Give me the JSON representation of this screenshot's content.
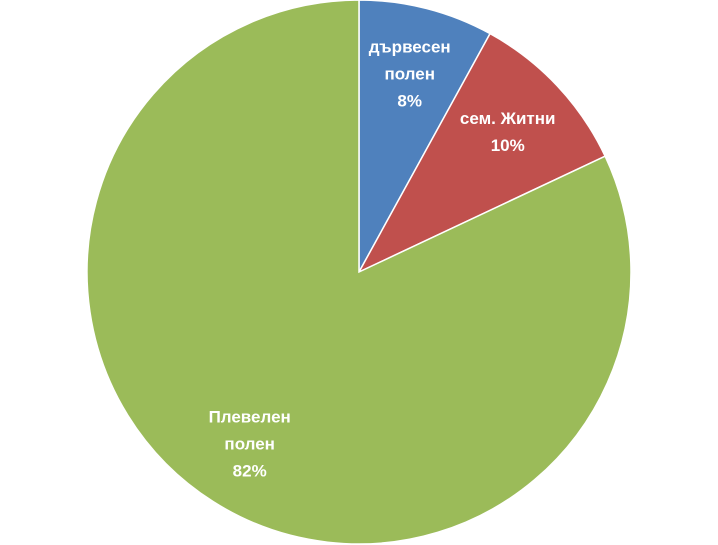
{
  "chart_data": {
    "type": "pie",
    "categories": [
      "дървесен полен",
      "сем. Житни",
      "Плевелен полен"
    ],
    "values": [
      8,
      10,
      82
    ],
    "value_labels": [
      "8%",
      "10%",
      "82%"
    ],
    "colors": [
      "#4f81bd",
      "#c0504d",
      "#9bbb59"
    ]
  }
}
